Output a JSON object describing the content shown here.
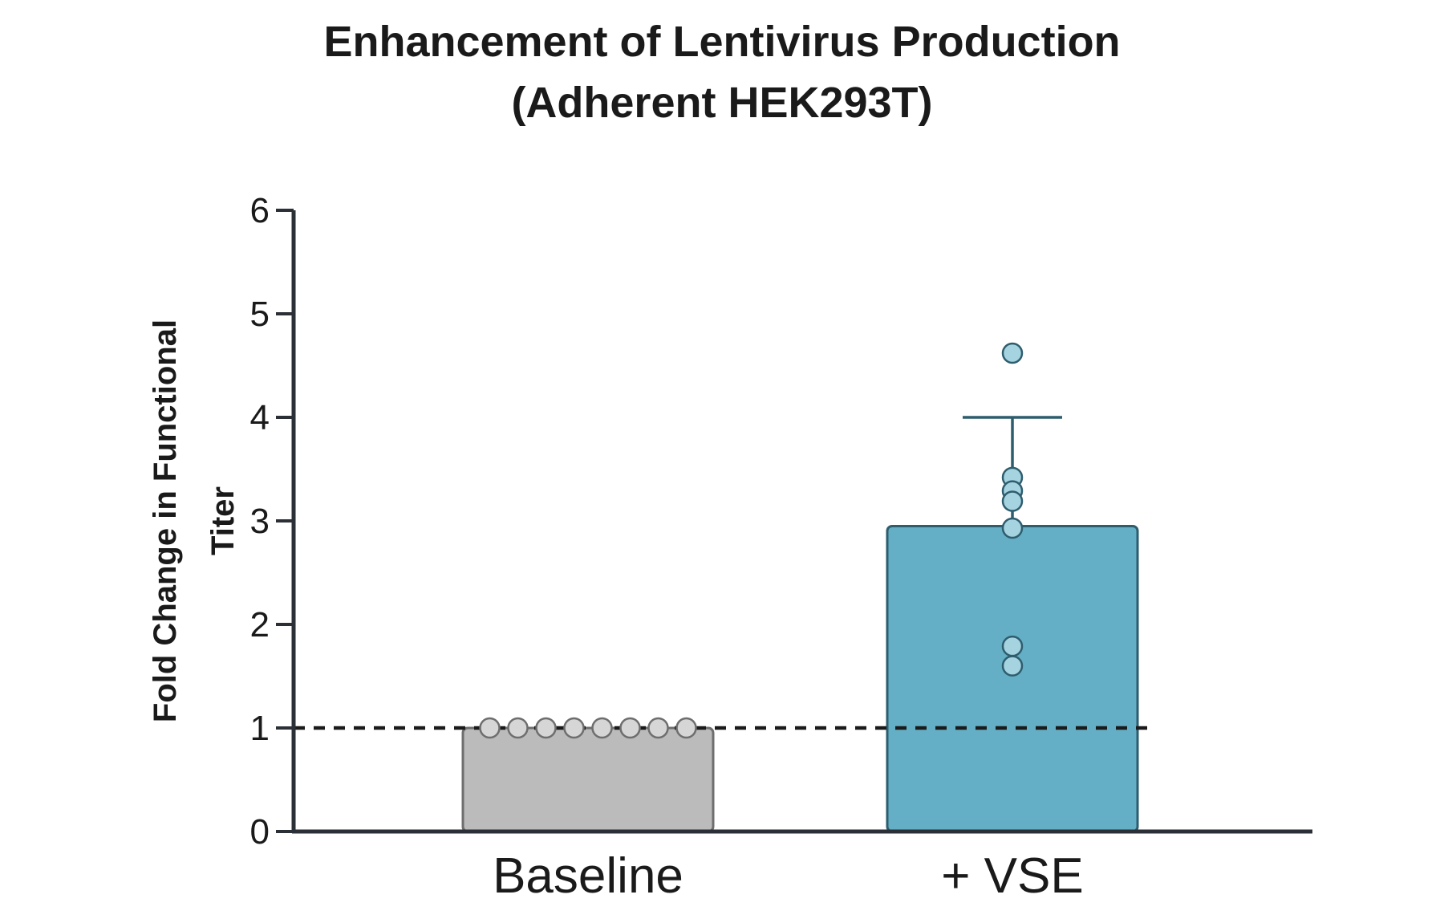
{
  "chart_data": {
    "type": "bar",
    "title_line1": "Enhancement of Lentivirus Production",
    "title_line2": "(Adherent HEK293T)",
    "xlabel": "",
    "ylabel_line1": "Fold Change in Functional",
    "ylabel_line2": "Titer",
    "ylim": [
      0,
      6
    ],
    "yticks": [
      0,
      1,
      2,
      3,
      4,
      5,
      6
    ],
    "categories": [
      "Baseline",
      "+ VSE"
    ],
    "values": [
      1.0,
      2.95
    ],
    "error_upper": [
      null,
      4.0
    ],
    "points": [
      [
        1,
        1,
        1,
        1,
        1,
        1,
        1,
        1
      ],
      [
        4.62,
        3.42,
        3.29,
        3.19,
        2.93,
        1.79,
        1.6
      ]
    ],
    "reference_line": 1,
    "grid": false,
    "colors": {
      "baseline_fill": "#bbbbbb",
      "baseline_stroke": "#6e6e6e",
      "baseline_point": "#d6d6d6",
      "vse_fill": "#64afc5",
      "vse_stroke": "#2e5d6e",
      "vse_point": "#a6d3e0",
      "axis": "#2b2f36",
      "reference": "#1a1a1a"
    }
  }
}
